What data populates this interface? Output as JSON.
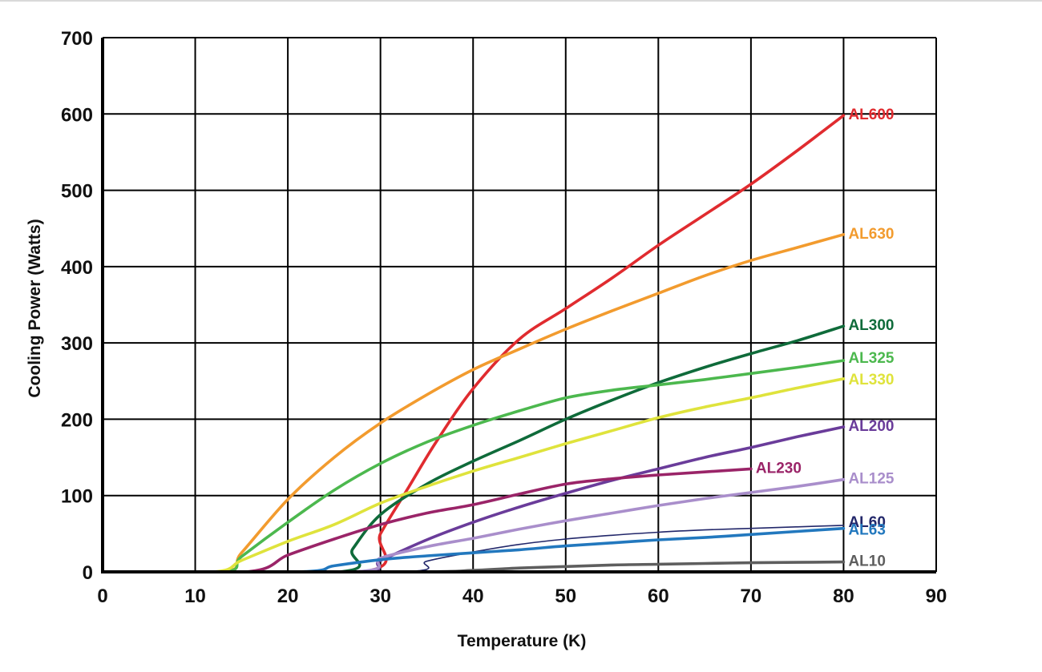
{
  "chart_data": {
    "type": "line",
    "xlabel": "Temperature (K)",
    "ylabel": "Cooling Power (Watts)",
    "xlim": [
      0,
      90
    ],
    "ylim": [
      0,
      700
    ],
    "x_ticks": [
      0,
      10,
      20,
      30,
      40,
      50,
      60,
      70,
      80,
      90
    ],
    "y_ticks": [
      0,
      100,
      200,
      300,
      400,
      500,
      600,
      700
    ],
    "grid": true,
    "legend": "inline labels at line ends",
    "series": [
      {
        "name": "AL600",
        "color": "#e02b2f",
        "points": [
          [
            0,
            0
          ],
          [
            28,
            0
          ],
          [
            30,
            50
          ],
          [
            33,
            110
          ],
          [
            36,
            170
          ],
          [
            40,
            240
          ],
          [
            45,
            305
          ],
          [
            50,
            345
          ],
          [
            55,
            385
          ],
          [
            60,
            428
          ],
          [
            65,
            468
          ],
          [
            70,
            508
          ],
          [
            75,
            552
          ],
          [
            80,
            598
          ]
        ]
      },
      {
        "name": "AL630",
        "color": "#f29b2e",
        "points": [
          [
            0,
            0
          ],
          [
            13,
            0
          ],
          [
            15,
            25
          ],
          [
            20,
            95
          ],
          [
            25,
            150
          ],
          [
            30,
            195
          ],
          [
            35,
            232
          ],
          [
            40,
            265
          ],
          [
            45,
            292
          ],
          [
            50,
            318
          ],
          [
            55,
            342
          ],
          [
            60,
            365
          ],
          [
            65,
            388
          ],
          [
            70,
            408
          ],
          [
            75,
            425
          ],
          [
            80,
            442
          ]
        ]
      },
      {
        "name": "AL300",
        "color": "#0f6b3a",
        "points": [
          [
            0,
            0
          ],
          [
            25.5,
            0
          ],
          [
            27,
            30
          ],
          [
            30,
            75
          ],
          [
            35,
            115
          ],
          [
            40,
            145
          ],
          [
            45,
            172
          ],
          [
            50,
            200
          ],
          [
            55,
            225
          ],
          [
            60,
            248
          ],
          [
            65,
            268
          ],
          [
            70,
            286
          ],
          [
            75,
            303
          ],
          [
            80,
            322
          ]
        ]
      },
      {
        "name": "AL325",
        "color": "#4cb84e",
        "points": [
          [
            0,
            0
          ],
          [
            13,
            0
          ],
          [
            15,
            20
          ],
          [
            20,
            65
          ],
          [
            25,
            107
          ],
          [
            30,
            142
          ],
          [
            35,
            170
          ],
          [
            40,
            192
          ],
          [
            45,
            211
          ],
          [
            50,
            228
          ],
          [
            55,
            238
          ],
          [
            60,
            245
          ],
          [
            65,
            252
          ],
          [
            70,
            260
          ],
          [
            75,
            268
          ],
          [
            80,
            277
          ]
        ]
      },
      {
        "name": "AL330",
        "color": "#dfe33c",
        "points": [
          [
            0,
            0
          ],
          [
            12,
            0
          ],
          [
            15,
            15
          ],
          [
            20,
            40
          ],
          [
            25,
            62
          ],
          [
            30,
            90
          ],
          [
            35,
            112
          ],
          [
            40,
            132
          ],
          [
            45,
            150
          ],
          [
            50,
            168
          ],
          [
            55,
            185
          ],
          [
            60,
            202
          ],
          [
            65,
            216
          ],
          [
            70,
            228
          ],
          [
            75,
            241
          ],
          [
            80,
            253
          ]
        ]
      },
      {
        "name": "AL200",
        "color": "#6a3c9a",
        "points": [
          [
            0,
            0
          ],
          [
            27,
            0
          ],
          [
            30,
            15
          ],
          [
            35,
            42
          ],
          [
            40,
            65
          ],
          [
            45,
            85
          ],
          [
            50,
            103
          ],
          [
            55,
            120
          ],
          [
            60,
            135
          ],
          [
            65,
            150
          ],
          [
            70,
            163
          ],
          [
            75,
            177
          ],
          [
            80,
            190
          ]
        ]
      },
      {
        "name": "AL230",
        "color": "#9a2468",
        "points": [
          [
            0,
            0
          ],
          [
            15.5,
            0
          ],
          [
            20,
            22
          ],
          [
            25,
            43
          ],
          [
            30,
            62
          ],
          [
            35,
            77
          ],
          [
            40,
            88
          ],
          [
            45,
            102
          ],
          [
            50,
            115
          ],
          [
            55,
            122
          ],
          [
            60,
            127
          ],
          [
            65,
            131
          ],
          [
            70,
            135
          ]
        ]
      },
      {
        "name": "AL125",
        "color": "#a98ecb",
        "points": [
          [
            0,
            0
          ],
          [
            27,
            0
          ],
          [
            30,
            18
          ],
          [
            35,
            33
          ],
          [
            40,
            44
          ],
          [
            45,
            56
          ],
          [
            50,
            67
          ],
          [
            55,
            77
          ],
          [
            60,
            87
          ],
          [
            65,
            96
          ],
          [
            70,
            104
          ],
          [
            75,
            112
          ],
          [
            80,
            121
          ]
        ]
      },
      {
        "name": "AL60",
        "color": "#22276a",
        "points": [
          [
            0,
            0
          ],
          [
            32,
            0
          ],
          [
            35,
            14
          ],
          [
            40,
            26
          ],
          [
            45,
            36
          ],
          [
            50,
            43
          ],
          [
            55,
            48
          ],
          [
            60,
            52
          ],
          [
            65,
            55
          ],
          [
            70,
            57
          ],
          [
            75,
            59
          ],
          [
            80,
            61
          ]
        ]
      },
      {
        "name": "AL63",
        "color": "#2278be",
        "points": [
          [
            0,
            0
          ],
          [
            21,
            0
          ],
          [
            25,
            8
          ],
          [
            30,
            16
          ],
          [
            35,
            21
          ],
          [
            40,
            25
          ],
          [
            45,
            29
          ],
          [
            50,
            34
          ],
          [
            55,
            38
          ],
          [
            60,
            42
          ],
          [
            65,
            45
          ],
          [
            70,
            49
          ],
          [
            75,
            53
          ],
          [
            80,
            57
          ]
        ]
      },
      {
        "name": "AL10",
        "color": "#5e5e5e",
        "points": [
          [
            0,
            0
          ],
          [
            33,
            0
          ],
          [
            40,
            2
          ],
          [
            45,
            5
          ],
          [
            50,
            7
          ],
          [
            55,
            9
          ],
          [
            60,
            10
          ],
          [
            65,
            11
          ],
          [
            70,
            12
          ],
          [
            75,
            12.5
          ],
          [
            80,
            13
          ]
        ]
      }
    ]
  }
}
